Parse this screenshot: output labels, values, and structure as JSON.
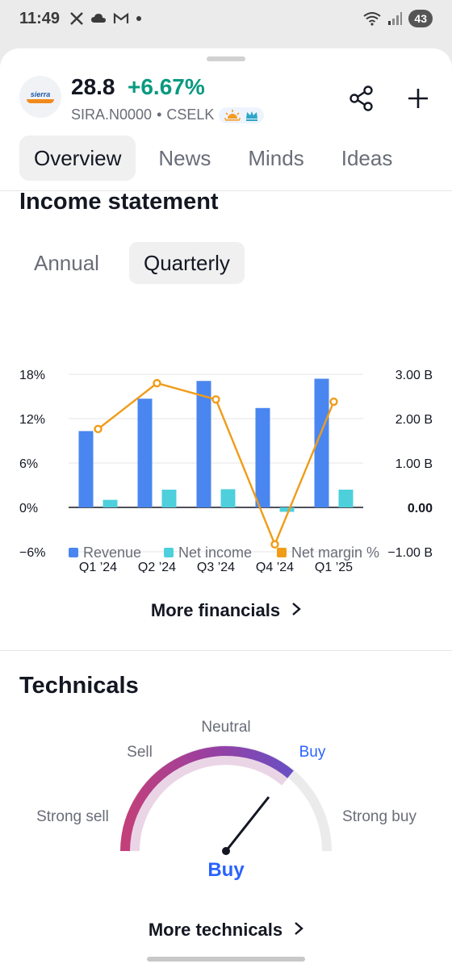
{
  "status": {
    "time": "11:49",
    "battery": "43"
  },
  "header": {
    "logo_text": "sierra",
    "price": "28.8",
    "change": "+6.67%",
    "symbol": "SIRA.N0000",
    "separator": "•",
    "exchange": "CSELK"
  },
  "tabs": [
    {
      "label": "Overview"
    },
    {
      "label": "News"
    },
    {
      "label": "Minds"
    },
    {
      "label": "Ideas"
    }
  ],
  "income": {
    "title": "Income statement",
    "periods": [
      {
        "label": "Annual"
      },
      {
        "label": "Quarterly"
      }
    ],
    "more_label": "More financials"
  },
  "chart_data": {
    "type": "bar",
    "categories": [
      "Q1 ’24",
      "Q2 ’24",
      "Q3 ’24",
      "Q4 ’24",
      "Q1 ’25"
    ],
    "series": [
      {
        "name": "Revenue",
        "type": "bar",
        "axis": "right",
        "color": "#4a86f0",
        "values": [
          1.72,
          2.45,
          2.85,
          2.24,
          2.9
        ]
      },
      {
        "name": "Net income",
        "type": "bar",
        "axis": "right",
        "color": "#4dd0dc",
        "values": [
          0.17,
          0.4,
          0.41,
          -0.1,
          0.4
        ]
      },
      {
        "name": "Net margin %",
        "type": "line",
        "axis": "left",
        "color": "#f09c18",
        "values": [
          10.6,
          16.8,
          14.6,
          -5.0,
          14.3
        ]
      }
    ],
    "y_left": {
      "ticks": [
        18,
        12,
        6,
        0,
        -6
      ],
      "tick_labels": [
        "18%",
        "12%",
        "6%",
        "0%",
        "−6%"
      ],
      "range": [
        -6,
        18
      ]
    },
    "y_right": {
      "ticks": [
        3,
        2,
        1,
        0,
        -1
      ],
      "tick_labels": [
        "3.00 B",
        "2.00 B",
        "1.00 B",
        "0.00",
        "−1.00 B"
      ],
      "range": [
        -1,
        3
      ]
    },
    "legend": [
      {
        "label": "Revenue",
        "color": "#4a86f0"
      },
      {
        "label": "Net income",
        "color": "#4dd0dc"
      },
      {
        "label": "Net margin %",
        "color": "#f09c18"
      }
    ],
    "legend_position": "bottom",
    "grid": true
  },
  "technicals": {
    "title": "Technicals",
    "labels": {
      "strong_sell": "Strong sell",
      "sell": "Sell",
      "neutral": "Neutral",
      "buy": "Buy",
      "strong_buy": "Strong buy"
    },
    "rating": "Buy",
    "rating_color": "#2962ff",
    "more_label": "More technicals"
  }
}
